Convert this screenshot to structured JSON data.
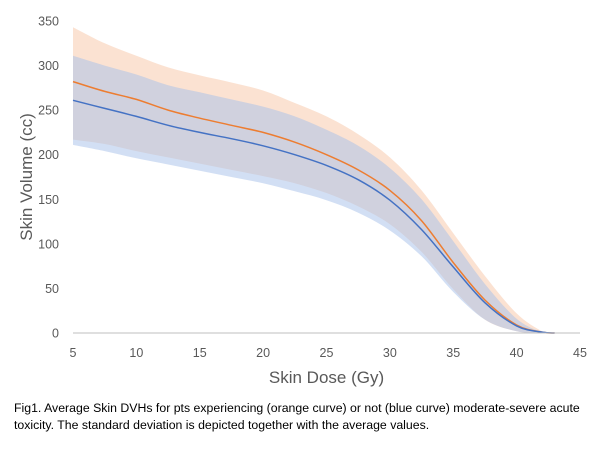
{
  "chart_data": {
    "type": "line",
    "xlabel": "Skin Dose (Gy)",
    "ylabel": "Skin Volume (cc)",
    "xlim": [
      5,
      45
    ],
    "ylim": [
      0,
      350
    ],
    "xticks": [
      5,
      10,
      15,
      20,
      25,
      30,
      35,
      40,
      45
    ],
    "yticks": [
      0,
      50,
      100,
      150,
      200,
      250,
      300,
      350
    ],
    "grid": false,
    "legend": "none",
    "series": [
      {
        "color": "#ED7D31",
        "band_color": "#F8CBAD",
        "x": [
          5,
          7.5,
          10,
          12.5,
          15,
          17.5,
          20,
          22.5,
          25,
          27.5,
          30,
          32.5,
          35,
          37.5,
          40,
          42,
          43
        ],
        "mean": [
          282,
          271,
          262,
          250,
          241,
          233,
          225,
          214,
          200,
          183,
          160,
          126,
          79,
          37,
          9,
          1,
          0
        ],
        "upper": [
          343,
          325,
          311,
          298,
          289,
          281,
          272,
          258,
          243,
          223,
          197,
          160,
          112,
          64,
          22,
          2,
          0
        ],
        "lower": [
          217,
          212,
          204,
          197,
          190,
          183,
          176,
          168,
          157,
          142,
          122,
          91,
          49,
          15,
          2,
          0,
          0
        ]
      },
      {
        "color": "#4472C4",
        "band_color": "#A6BFEA",
        "x": [
          5,
          7.5,
          10,
          12.5,
          15,
          17.5,
          20,
          22.5,
          25,
          27.5,
          30,
          32.5,
          35,
          37.5,
          40,
          42,
          43
        ],
        "mean": [
          261,
          252,
          243,
          233,
          225,
          218,
          210,
          200,
          188,
          172,
          149,
          116,
          74,
          34,
          8,
          1,
          0
        ],
        "upper": [
          311,
          300,
          290,
          278,
          270,
          262,
          254,
          243,
          228,
          210,
          185,
          150,
          103,
          55,
          16,
          1,
          0
        ],
        "lower": [
          211,
          204,
          196,
          189,
          182,
          175,
          168,
          159,
          149,
          135,
          115,
          86,
          46,
          15,
          2,
          0,
          0
        ]
      }
    ]
  },
  "caption": "Fig1. Average Skin DVHs for pts experiencing (orange curve) or not (blue curve) moderate-severe acute toxicity. The standard deviation is depicted together with the average values."
}
